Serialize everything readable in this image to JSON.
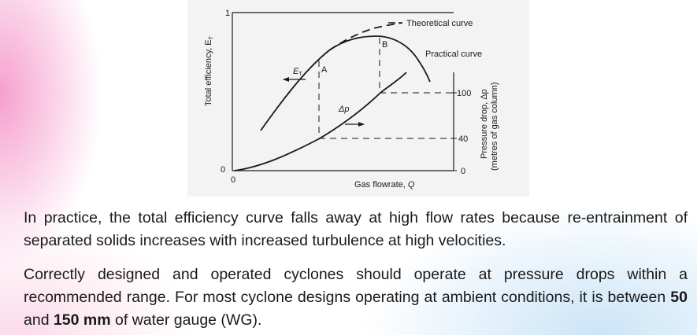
{
  "figure": {
    "axis_y_top_label": "1",
    "axis_origin_y_label": "0",
    "axis_origin_x_label": "0",
    "y_axis_label": "Total efficiency, E",
    "y_axis_label_sub": "T",
    "x_axis_label": "Gas flowrate, ",
    "x_axis_label_var": "Q",
    "theoretical_curve_label": "Theoretical curve",
    "practical_curve_label": "Practical curve",
    "point_a_label": "A",
    "point_b_label": "B",
    "et_marker_label": "E",
    "et_marker_sub": "T",
    "dp_marker_label": "Δp",
    "right_axis_tick_100": "100",
    "right_axis_tick_40": "40",
    "right_axis_tick_0": "0",
    "right_axis_label_line1": "Pressure drop, Δp",
    "right_axis_label_line2": "(metres of gas column)"
  },
  "text": {
    "paragraph1": "In practice, the total efficiency curve falls away at high flow rates because re-entrainment of separated solids increases with increased turbulence at high velocities.",
    "paragraph2_part1": "Correctly designed and operated cyclones should operate at pressure drops within a recommended range. For most cyclone designs operating at ambient conditions, it is between ",
    "paragraph2_bold1": "50",
    "paragraph2_part2": " and ",
    "paragraph2_bold2": "150 mm",
    "paragraph2_part3": " of water gauge (WG)."
  }
}
